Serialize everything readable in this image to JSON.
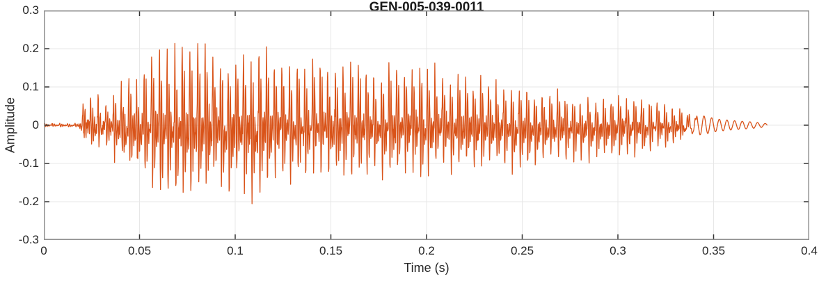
{
  "chart_data": {
    "type": "line",
    "title": "GEN-005-039-0011",
    "xlabel": "Time (s)",
    "ylabel": "Amplitude",
    "xlim": [
      0,
      0.4
    ],
    "ylim": [
      -0.3,
      0.3
    ],
    "grid": true,
    "legend": "none",
    "xticks": {
      "values": [
        0,
        0.05,
        0.1,
        0.15,
        0.2,
        0.25,
        0.3,
        0.35,
        0.4
      ],
      "labels": [
        "0",
        "0.05",
        "0.1",
        "0.15",
        "0.2",
        "0.25",
        "0.3",
        "0.35",
        "0.4"
      ]
    },
    "yticks": {
      "values": [
        -0.3,
        -0.2,
        -0.1,
        0,
        0.1,
        0.2,
        0.3
      ],
      "labels": [
        "-0.3",
        "-0.2",
        "-0.1",
        "0",
        "0.1",
        "0.2",
        "0.3"
      ]
    },
    "colors": {
      "line": "#D95319",
      "background": "#FFFFFF",
      "axis_box": "#8F8F8F",
      "tick_marks": "#333333",
      "grid": "#E7E7E7",
      "title_text": "#1A1A1A",
      "label_text": "#262626"
    },
    "signal": {
      "description": "speech-like waveform, glottal pulses ~250 Hz, onset 0.021 s, peak +0.24/-0.22 near 0.074 s, decaying to sinusoidal tail ending 0.378 s",
      "f0_hz": 250,
      "t_start": 0,
      "t_end": 0.378,
      "dt": 0.00016,
      "tail_sine_start": 0.332,
      "tail_blend": 0.012,
      "seed": 20240817,
      "envelope": [
        [
          0.0,
          0.005,
          -0.005
        ],
        [
          0.018,
          0.005,
          -0.005
        ],
        [
          0.0205,
          0.065,
          -0.05
        ],
        [
          0.027,
          0.075,
          -0.062
        ],
        [
          0.033,
          0.052,
          -0.05
        ],
        [
          0.038,
          0.09,
          -0.09
        ],
        [
          0.044,
          0.1,
          -0.11
        ],
        [
          0.05,
          0.095,
          -0.1
        ],
        [
          0.0555,
          0.21,
          -0.185
        ],
        [
          0.062,
          0.225,
          -0.2
        ],
        [
          0.068,
          0.21,
          -0.22
        ],
        [
          0.074,
          0.24,
          -0.22
        ],
        [
          0.08,
          0.205,
          -0.19
        ],
        [
          0.09,
          0.2,
          -0.175
        ],
        [
          0.1,
          0.19,
          -0.165
        ],
        [
          0.107,
          0.22,
          -0.185
        ],
        [
          0.112,
          0.205,
          -0.2
        ],
        [
          0.12,
          0.175,
          -0.155
        ],
        [
          0.135,
          0.17,
          -0.15
        ],
        [
          0.15,
          0.168,
          -0.145
        ],
        [
          0.165,
          0.165,
          -0.142
        ],
        [
          0.18,
          0.16,
          -0.14
        ],
        [
          0.2,
          0.15,
          -0.13
        ],
        [
          0.215,
          0.135,
          -0.125
        ],
        [
          0.23,
          0.125,
          -0.125
        ],
        [
          0.245,
          0.115,
          -0.12
        ],
        [
          0.258,
          0.095,
          -0.105
        ],
        [
          0.27,
          0.082,
          -0.1
        ],
        [
          0.285,
          0.076,
          -0.095
        ],
        [
          0.3,
          0.072,
          -0.088
        ],
        [
          0.315,
          0.068,
          -0.078
        ],
        [
          0.325,
          0.06,
          -0.065
        ],
        [
          0.332,
          0.05,
          -0.048
        ],
        [
          0.338,
          0.034,
          -0.03
        ],
        [
          0.345,
          0.024,
          -0.02
        ],
        [
          0.352,
          0.016,
          -0.013
        ],
        [
          0.36,
          0.012,
          -0.01
        ],
        [
          0.369,
          0.009,
          -0.007
        ],
        [
          0.378,
          0.004,
          -0.003
        ]
      ],
      "pulse_pos": [
        [
          1.0,
          0.1,
          0.045
        ],
        [
          0.68,
          0.36,
          0.055
        ],
        [
          0.32,
          0.6,
          0.05
        ],
        [
          0.18,
          0.8,
          0.05
        ]
      ],
      "pulse_neg": [
        [
          0.95,
          0.22,
          0.05
        ],
        [
          0.65,
          0.5,
          0.06
        ],
        [
          0.38,
          0.72,
          0.06
        ],
        [
          0.22,
          0.92,
          0.05
        ]
      ],
      "noise_boost_region": [
        0.02,
        0.052,
        2.0
      ]
    }
  }
}
